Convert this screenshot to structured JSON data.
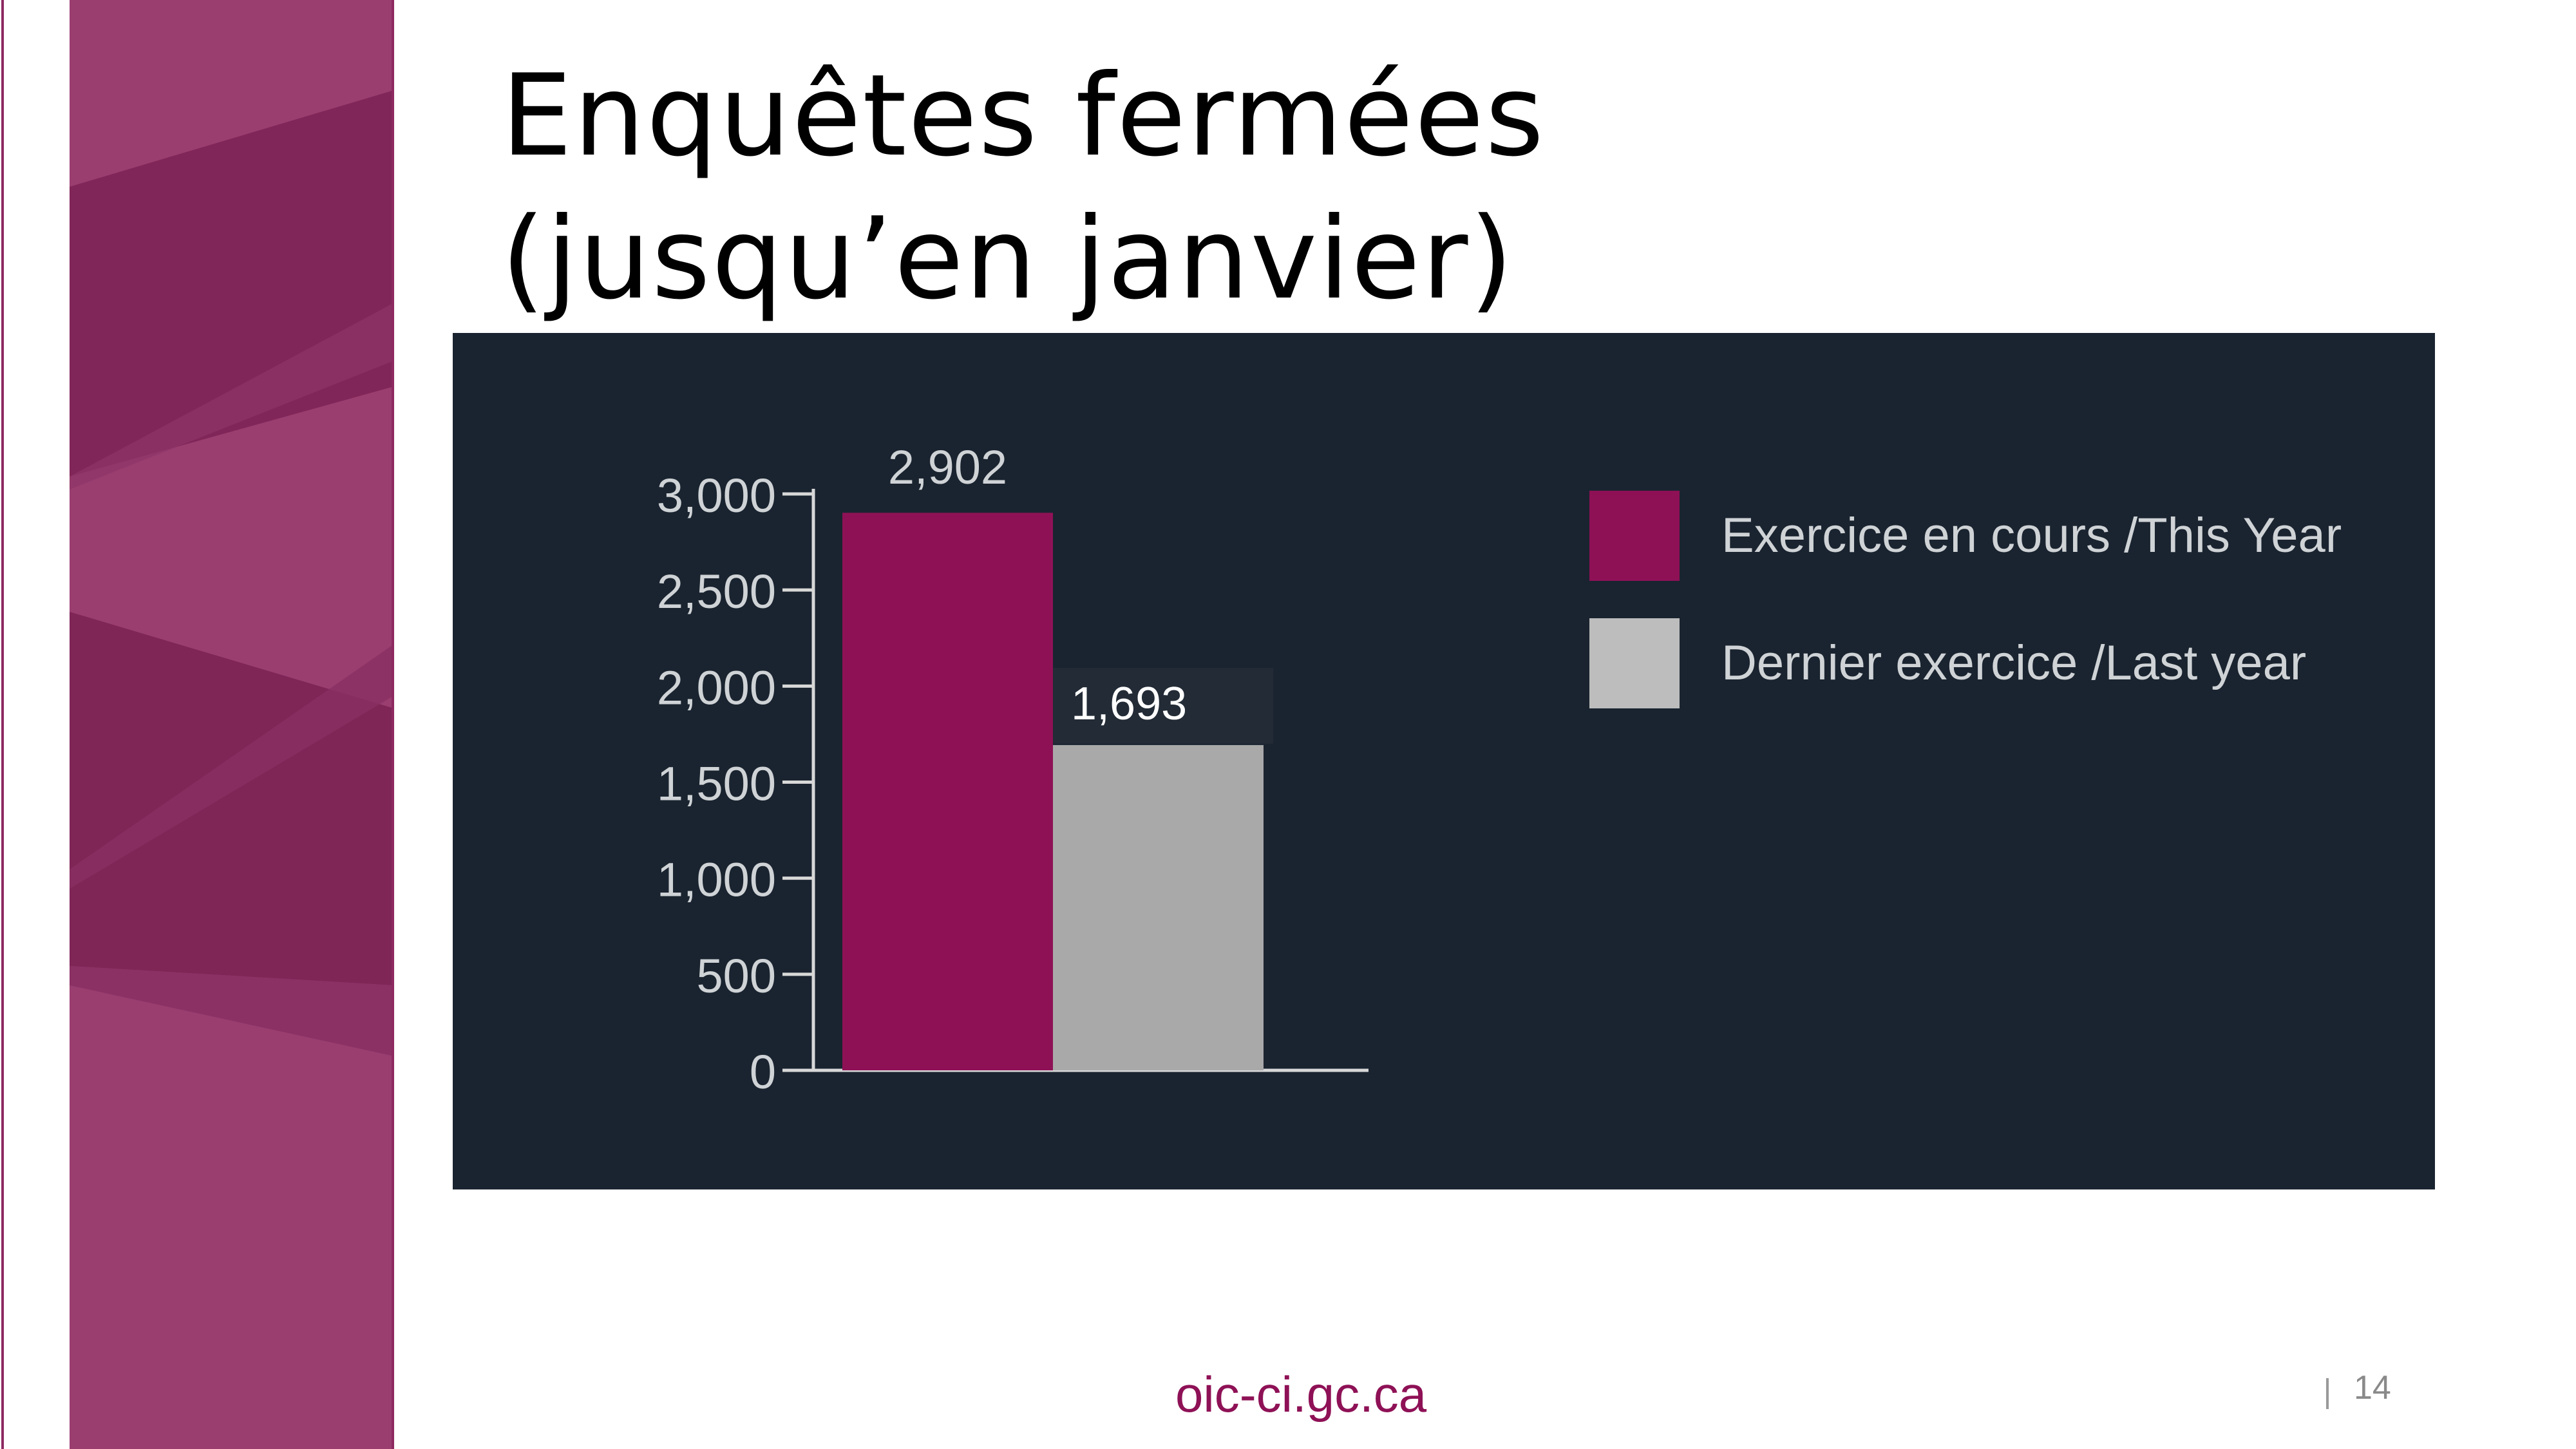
{
  "slide": {
    "title_line1": "Enquêtes fermées",
    "title_line2": "(jusqu’en janvier)",
    "footer_url": "oic-ci.gc.ca",
    "page_number": "14"
  },
  "colors": {
    "this_year": "#8e1156",
    "last_year": "#a9a9a9",
    "panel_bg": "#1a2430",
    "sidebar": "#8e2a60"
  },
  "chart_data": {
    "type": "bar",
    "categories": [
      "Exercice en cours /This Year",
      "Dernier exercice /Last year"
    ],
    "values": [
      2902,
      1693
    ],
    "data_labels": [
      "2,902",
      "1,693"
    ],
    "ylim": [
      0,
      3000
    ],
    "yticks": [
      0,
      500,
      1000,
      1500,
      2000,
      2500,
      3000
    ],
    "ytick_labels": [
      "0",
      "500",
      "1,000",
      "1,500",
      "2,000",
      "2,500",
      "3,000"
    ],
    "legend": [
      "Exercice en cours /This Year",
      "Dernier exercice /Last year"
    ],
    "legend_position": "right",
    "grid": false,
    "title": "",
    "xlabel": "",
    "ylabel": ""
  }
}
